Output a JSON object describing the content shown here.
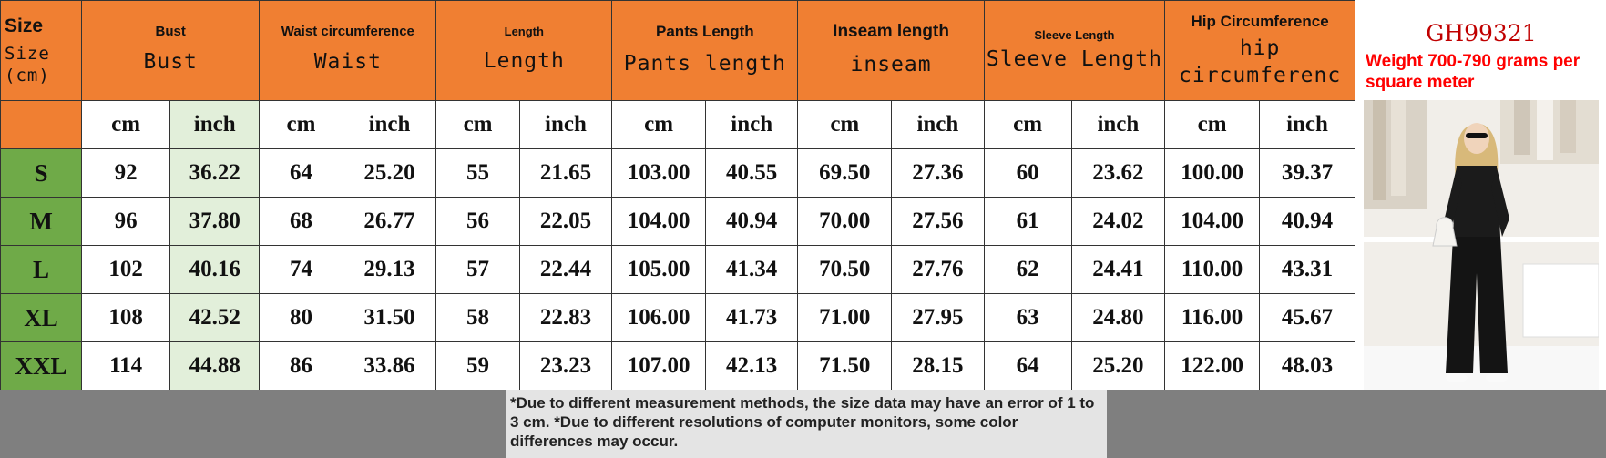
{
  "header": {
    "size": {
      "en": "Size",
      "cn": "Size\n(cm)"
    },
    "columns": [
      {
        "en": "Bust",
        "cn": "Bust"
      },
      {
        "en": "Waist circumference",
        "cn": "Waist"
      },
      {
        "en": "Length",
        "cn": "Length"
      },
      {
        "en": "Pants Length",
        "cn": "Pants length"
      },
      {
        "en": "Inseam length",
        "cn": "inseam"
      },
      {
        "en": "Sleeve Length",
        "cn": "Sleeve Length"
      },
      {
        "en": "Hip Circumference",
        "cn": "hip circumferenc"
      }
    ]
  },
  "units": {
    "cm": "cm",
    "inch": "inch"
  },
  "rows": [
    {
      "size": "S",
      "values": [
        "92",
        "36.22",
        "64",
        "25.20",
        "55",
        "21.65",
        "103.00",
        "40.55",
        "69.50",
        "27.36",
        "60",
        "23.62",
        "100.00",
        "39.37"
      ]
    },
    {
      "size": "M",
      "values": [
        "96",
        "37.80",
        "68",
        "26.77",
        "56",
        "22.05",
        "104.00",
        "40.94",
        "70.00",
        "27.56",
        "61",
        "24.02",
        "104.00",
        "40.94"
      ]
    },
    {
      "size": "L",
      "values": [
        "102",
        "40.16",
        "74",
        "29.13",
        "57",
        "22.44",
        "105.00",
        "41.34",
        "70.50",
        "27.76",
        "62",
        "24.41",
        "110.00",
        "43.31"
      ]
    },
    {
      "size": "XL",
      "values": [
        "108",
        "42.52",
        "80",
        "31.50",
        "58",
        "22.83",
        "106.00",
        "41.73",
        "71.00",
        "27.95",
        "63",
        "24.80",
        "116.00",
        "45.67"
      ]
    },
    {
      "size": "XXL",
      "values": [
        "114",
        "44.88",
        "86",
        "33.86",
        "59",
        "23.23",
        "107.00",
        "42.13",
        "71.50",
        "28.15",
        "64",
        "25.20",
        "122.00",
        "48.03"
      ]
    }
  ],
  "product": {
    "code": "GH99321",
    "weight": "Weight 700-790 grams per square meter"
  },
  "footer": {
    "note": "*Due to different measurement methods, the size data may have an error of 1 to 3 cm. *Due to different resolutions of computer monitors, some color differences may occur."
  },
  "colors": {
    "header": "#f07f32",
    "size_col": "#6faa48",
    "inch_col": "#e2efda",
    "code": "#c00000",
    "weight": "#ff0000",
    "footer": "#7f7f7f"
  }
}
